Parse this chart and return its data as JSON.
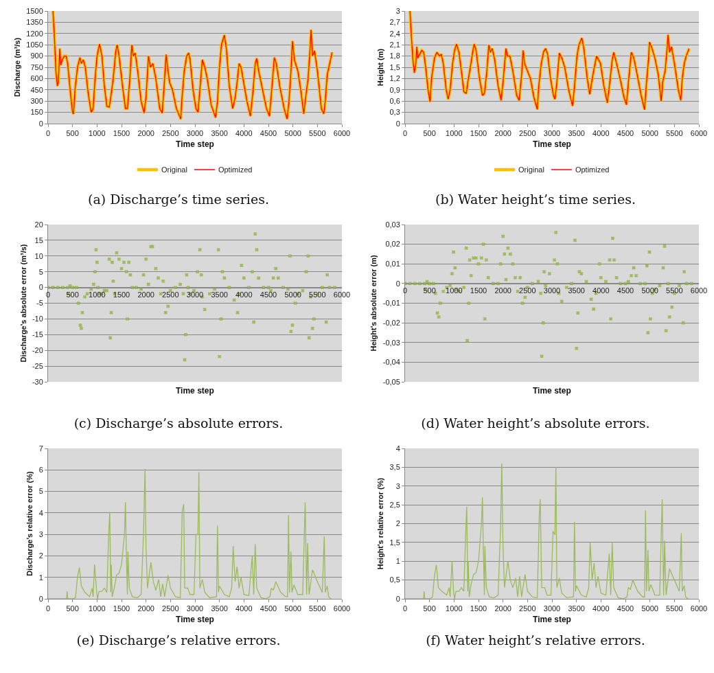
{
  "chart_data": [
    {
      "type": "line",
      "ylabel": "Discharge (m³/s)",
      "xlabel": "Time step",
      "annotations": [
        "(a) Discharge’s time series."
      ],
      "xlim": [
        0,
        6000
      ],
      "xticks": [
        0,
        500,
        1000,
        1500,
        2000,
        2500,
        3000,
        3500,
        4000,
        4500,
        5000,
        5500,
        6000
      ],
      "ylim": [
        0,
        1500
      ],
      "yticks": [
        0,
        150,
        300,
        450,
        600,
        750,
        900,
        1050,
        1200,
        1350,
        1500
      ],
      "grid": "y",
      "legend": "bottom",
      "x": [
        100,
        130,
        160,
        190,
        210,
        240,
        260,
        290,
        330,
        370,
        400,
        450,
        500,
        520,
        550,
        600,
        650,
        680,
        720,
        760,
        820,
        880,
        920,
        960,
        1000,
        1050,
        1100,
        1150,
        1200,
        1250,
        1290,
        1330,
        1380,
        1410,
        1450,
        1520,
        1580,
        1620,
        1670,
        1710,
        1740,
        1780,
        1830,
        1900,
        1960,
        2000,
        2050,
        2090,
        2140,
        2200,
        2280,
        2330,
        2370,
        2410,
        2440,
        2480,
        2540,
        2620,
        2710,
        2730,
        2780,
        2830,
        2870,
        2900,
        2960,
        3020,
        3060,
        3100,
        3150,
        3200,
        3250,
        3330,
        3420,
        3460,
        3500,
        3540,
        3600,
        3640,
        3700,
        3770,
        3820,
        3860,
        3900,
        3940,
        3980,
        4060,
        4130,
        4180,
        4230,
        4260,
        4300,
        4380,
        4460,
        4520,
        4560,
        4620,
        4660,
        4730,
        4820,
        4880,
        4920,
        4960,
        4990,
        5030,
        5100,
        5170,
        5220,
        5260,
        5310,
        5350,
        5370,
        5400,
        5440,
        5500,
        5580,
        5630,
        5660,
        5700,
        5750,
        5800
      ],
      "series": [
        {
          "name": "Original",
          "color": "#ffc000",
          "values": [
            1500,
            1150,
            700,
            500,
            560,
            1000,
            780,
            850,
            900,
            900,
            800,
            450,
            150,
            130,
            450,
            750,
            880,
            800,
            850,
            750,
            400,
            150,
            200,
            600,
            900,
            1060,
            900,
            500,
            230,
            220,
            400,
            600,
            950,
            1050,
            900,
            500,
            200,
            200,
            600,
            1050,
            900,
            940,
            700,
            300,
            140,
            350,
            900,
            750,
            800,
            600,
            200,
            140,
            500,
            920,
            750,
            550,
            450,
            200,
            60,
            300,
            700,
            900,
            940,
            850,
            450,
            200,
            150,
            450,
            850,
            750,
            600,
            250,
            80,
            300,
            750,
            1050,
            1180,
            1000,
            500,
            200,
            350,
            550,
            800,
            750,
            600,
            300,
            100,
            400,
            800,
            870,
            700,
            450,
            200,
            100,
            400,
            880,
            800,
            500,
            200,
            60,
            300,
            700,
            1100,
            850,
            700,
            400,
            130,
            350,
            600,
            1000,
            1250,
            900,
            970,
            700,
            200,
            130,
            300,
            650,
            800,
            950
          ]
        },
        {
          "name": "Optimized",
          "color": "#ff0000",
          "values": [
            1500,
            1150,
            700,
            500,
            560,
            1000,
            780,
            850,
            900,
            900,
            800,
            450,
            150,
            130,
            450,
            750,
            880,
            800,
            850,
            750,
            400,
            150,
            200,
            600,
            900,
            1060,
            900,
            500,
            230,
            220,
            400,
            600,
            950,
            1050,
            900,
            500,
            200,
            200,
            600,
            1050,
            900,
            940,
            700,
            300,
            140,
            350,
            900,
            750,
            800,
            600,
            200,
            140,
            500,
            920,
            750,
            550,
            450,
            200,
            60,
            300,
            700,
            900,
            940,
            850,
            450,
            200,
            150,
            450,
            850,
            750,
            600,
            250,
            80,
            300,
            750,
            1050,
            1180,
            1000,
            500,
            200,
            350,
            550,
            800,
            750,
            600,
            300,
            100,
            400,
            800,
            870,
            700,
            450,
            200,
            100,
            400,
            880,
            800,
            500,
            200,
            60,
            300,
            700,
            1100,
            850,
            700,
            400,
            130,
            350,
            600,
            1000,
            1250,
            900,
            970,
            700,
            200,
            130,
            300,
            650,
            800,
            950
          ]
        }
      ]
    },
    {
      "type": "line",
      "ylabel": "Height (m)",
      "xlabel": "Time step",
      "annotations": [
        "(b) Water height’s time series."
      ],
      "xlim": [
        0,
        6000
      ],
      "xticks": [
        0,
        500,
        1000,
        1500,
        2000,
        2500,
        3000,
        3500,
        4000,
        4500,
        5000,
        5500,
        6000
      ],
      "ylim": [
        0,
        3
      ],
      "yticks": [
        0,
        {
          "value": 0.3,
          "label": "0,3"
        },
        {
          "value": 0.6,
          "label": "0,6"
        },
        {
          "value": 0.9,
          "label": "0,9"
        },
        {
          "value": 1.2,
          "label": "1,2"
        },
        {
          "value": 1.5,
          "label": "1,5"
        },
        {
          "value": 1.8,
          "label": "1,8"
        },
        {
          "value": 2.1,
          "label": "2,1"
        },
        {
          "value": 2.4,
          "label": "2,4"
        },
        {
          "value": 2.7,
          "label": "2,7"
        },
        3
      ],
      "grid": "y",
      "legend": "bottom",
      "x": [
        100,
        130,
        160,
        190,
        220,
        240,
        260,
        300,
        340,
        380,
        420,
        470,
        510,
        540,
        600,
        650,
        700,
        740,
        780,
        840,
        880,
        920,
        970,
        1010,
        1050,
        1100,
        1160,
        1200,
        1250,
        1280,
        1320,
        1380,
        1410,
        1450,
        1520,
        1580,
        1620,
        1670,
        1710,
        1740,
        1780,
        1830,
        1900,
        1960,
        2000,
        2060,
        2090,
        2140,
        2200,
        2280,
        2330,
        2380,
        2410,
        2440,
        2500,
        2560,
        2630,
        2700,
        2730,
        2780,
        2830,
        2870,
        2910,
        2970,
        3030,
        3060,
        3100,
        3150,
        3200,
        3260,
        3340,
        3420,
        3460,
        3510,
        3550,
        3610,
        3650,
        3720,
        3770,
        3810,
        3850,
        3910,
        3950,
        3990,
        4060,
        4130,
        4180,
        4230,
        4260,
        4310,
        4390,
        4470,
        4520,
        4560,
        4620,
        4670,
        4740,
        4820,
        4890,
        4930,
        4970,
        4990,
        5030,
        5100,
        5170,
        5230,
        5260,
        5310,
        5350,
        5370,
        5400,
        5440,
        5500,
        5580,
        5630,
        5660,
        5700,
        5740,
        5800
      ],
      "series": [
        {
          "name": "Original",
          "color": "#ffc000",
          "values": [
            3.0,
            2.3,
            1.7,
            1.35,
            1.6,
            2.05,
            1.75,
            1.85,
            1.95,
            1.9,
            1.5,
            0.9,
            0.58,
            1.2,
            1.75,
            1.9,
            1.8,
            1.85,
            1.6,
            0.9,
            0.65,
            0.9,
            1.6,
            1.95,
            2.12,
            1.9,
            1.3,
            0.85,
            0.8,
            1.1,
            1.4,
            1.9,
            2.12,
            1.95,
            1.2,
            0.75,
            0.8,
            1.4,
            2.1,
            1.9,
            2.0,
            1.7,
            1.0,
            0.62,
            1.1,
            2.0,
            1.8,
            1.8,
            1.4,
            0.75,
            0.62,
            1.3,
            1.95,
            1.6,
            1.4,
            1.2,
            0.7,
            0.38,
            1.0,
            1.6,
            1.92,
            2.0,
            1.85,
            1.2,
            0.75,
            0.65,
            1.1,
            1.88,
            1.75,
            1.5,
            0.9,
            0.47,
            1.0,
            1.8,
            2.1,
            2.28,
            2.0,
            1.2,
            0.78,
            1.1,
            1.4,
            1.8,
            1.7,
            1.6,
            1.0,
            0.55,
            1.1,
            1.7,
            1.9,
            1.65,
            1.2,
            0.7,
            0.5,
            1.1,
            1.9,
            1.75,
            1.3,
            0.75,
            0.37,
            1.1,
            1.7,
            2.17,
            2.05,
            1.75,
            1.3,
            0.6,
            1.1,
            1.4,
            2.0,
            2.37,
            1.9,
            2.05,
            1.6,
            0.9,
            0.62,
            1.2,
            1.6,
            1.8,
            2.0
          ]
        },
        {
          "name": "Optimized",
          "color": "#ff0000",
          "values": [
            3.0,
            2.3,
            1.7,
            1.35,
            1.6,
            2.05,
            1.75,
            1.85,
            1.95,
            1.9,
            1.5,
            0.9,
            0.58,
            1.2,
            1.75,
            1.9,
            1.8,
            1.85,
            1.6,
            0.9,
            0.65,
            0.9,
            1.6,
            1.95,
            2.12,
            1.9,
            1.3,
            0.85,
            0.8,
            1.1,
            1.4,
            1.9,
            2.12,
            1.95,
            1.2,
            0.75,
            0.8,
            1.4,
            2.1,
            1.9,
            2.0,
            1.7,
            1.0,
            0.62,
            1.1,
            2.0,
            1.8,
            1.8,
            1.4,
            0.75,
            0.62,
            1.3,
            1.95,
            1.6,
            1.4,
            1.2,
            0.7,
            0.38,
            1.0,
            1.6,
            1.92,
            2.0,
            1.85,
            1.2,
            0.75,
            0.65,
            1.1,
            1.88,
            1.75,
            1.5,
            0.9,
            0.47,
            1.0,
            1.8,
            2.1,
            2.28,
            2.0,
            1.2,
            0.78,
            1.1,
            1.4,
            1.8,
            1.7,
            1.6,
            1.0,
            0.55,
            1.1,
            1.7,
            1.9,
            1.65,
            1.2,
            0.7,
            0.5,
            1.1,
            1.9,
            1.75,
            1.3,
            0.75,
            0.37,
            1.1,
            1.7,
            2.17,
            2.05,
            1.75,
            1.3,
            0.6,
            1.1,
            1.4,
            2.0,
            2.37,
            1.9,
            2.05,
            1.6,
            0.9,
            0.62,
            1.2,
            1.6,
            1.8,
            2.0
          ]
        }
      ]
    },
    {
      "type": "scatter",
      "ylabel": "Discharge's absolute error (m³/s)",
      "xlabel": "Time step",
      "annotations": [
        "(c) Discharge’s absolute errors."
      ],
      "xlim": [
        0,
        6000
      ],
      "xticks": [
        0,
        500,
        1000,
        1500,
        2000,
        2500,
        3000,
        3500,
        4000,
        4500,
        5000,
        5500,
        6000
      ],
      "ylim": [
        -30,
        20
      ],
      "yticks": [
        -30,
        -25,
        -20,
        -15,
        -10,
        -5,
        0,
        5,
        10,
        15,
        20
      ],
      "grid": "y",
      "marker": "cross",
      "x": [
        0,
        100,
        200,
        300,
        400,
        420,
        450,
        500,
        580,
        620,
        660,
        680,
        700,
        750,
        800,
        880,
        930,
        960,
        980,
        1000,
        1020,
        1050,
        1100,
        1150,
        1200,
        1250,
        1270,
        1290,
        1310,
        1330,
        1360,
        1400,
        1450,
        1500,
        1550,
        1600,
        1620,
        1650,
        1680,
        1720,
        1800,
        1900,
        1950,
        2000,
        2050,
        2100,
        2130,
        2200,
        2250,
        2300,
        2350,
        2400,
        2450,
        2500,
        2600,
        2700,
        2760,
        2790,
        2810,
        2830,
        2860,
        2900,
        2980,
        3050,
        3100,
        3130,
        3150,
        3200,
        3300,
        3400,
        3480,
        3500,
        3530,
        3560,
        3600,
        3700,
        3800,
        3870,
        3900,
        3950,
        4000,
        4100,
        4170,
        4200,
        4230,
        4260,
        4300,
        4400,
        4500,
        4550,
        4600,
        4650,
        4700,
        4800,
        4900,
        4940,
        4960,
        4990,
        5050,
        5100,
        5200,
        5270,
        5310,
        5330,
        5360,
        5400,
        5430,
        5500,
        5600,
        5680,
        5700,
        5750,
        5850
      ],
      "series": [
        {
          "color": "#9bbb59",
          "values": [
            0,
            0,
            0,
            0,
            0,
            -2,
            0.5,
            0,
            0,
            -5,
            -12,
            -13,
            -8,
            -3,
            -2,
            -0.5,
            1,
            5,
            12,
            8,
            0,
            -2,
            -2,
            -1,
            -1,
            9,
            -16,
            -8,
            8,
            2,
            -2,
            11,
            9,
            6,
            8,
            5,
            -10,
            8,
            4,
            0,
            0,
            -0.5,
            4,
            9,
            1,
            13,
            13,
            6,
            3,
            -2,
            2,
            -8,
            -6,
            -1,
            0,
            1,
            -2,
            -23,
            -15,
            4,
            0,
            -2,
            -1,
            5,
            12,
            4,
            -3,
            -7,
            -2,
            -0.5,
            12,
            -22,
            -10,
            5,
            3,
            0,
            -4,
            -8,
            -2,
            7,
            3,
            0,
            5,
            -11,
            17,
            12,
            3,
            0,
            0,
            -1,
            3,
            6,
            3,
            0,
            -0.5,
            10,
            -14,
            -12,
            -5,
            -2,
            -1,
            5,
            10,
            -16,
            -3,
            -13,
            -10,
            -2,
            0,
            -11,
            4,
            0,
            0
          ]
        }
      ]
    },
    {
      "type": "scatter",
      "ylabel": "Height's absolute error (m)",
      "xlabel": "Time step",
      "annotations": [
        "(d) Water height’s absolute errors."
      ],
      "xlim": [
        0,
        6000
      ],
      "xticks": [
        0,
        500,
        1000,
        1500,
        2000,
        2500,
        3000,
        3500,
        4000,
        4500,
        5000,
        5500,
        6000
      ],
      "ylim": [
        -0.05,
        0.03
      ],
      "yticks": [
        {
          "value": -0.05,
          "label": "-0,05"
        },
        {
          "value": -0.04,
          "label": "-0,04"
        },
        {
          "value": -0.03,
          "label": "-0,03"
        },
        {
          "value": -0.02,
          "label": "-0,02"
        },
        {
          "value": -0.01,
          "label": "-0,01"
        },
        0,
        {
          "value": 0.01,
          "label": "0,01"
        },
        {
          "value": 0.02,
          "label": "0,02"
        },
        {
          "value": 0.03,
          "label": "0,03"
        }
      ],
      "grid": "y",
      "marker": "cross",
      "x": [
        0,
        100,
        200,
        300,
        400,
        420,
        450,
        500,
        580,
        620,
        660,
        690,
        720,
        780,
        850,
        920,
        960,
        990,
        1020,
        1050,
        1100,
        1200,
        1250,
        1270,
        1300,
        1320,
        1350,
        1400,
        1450,
        1500,
        1560,
        1600,
        1630,
        1660,
        1700,
        1800,
        1900,
        1950,
        2000,
        2030,
        2060,
        2100,
        2150,
        2200,
        2250,
        2300,
        2350,
        2400,
        2450,
        2500,
        2600,
        2720,
        2770,
        2790,
        2820,
        2840,
        2870,
        2950,
        3050,
        3080,
        3110,
        3140,
        3200,
        3300,
        3400,
        3470,
        3500,
        3530,
        3560,
        3600,
        3700,
        3800,
        3850,
        3900,
        3970,
        4000,
        4100,
        4180,
        4200,
        4240,
        4270,
        4320,
        4400,
        4500,
        4560,
        4620,
        4670,
        4720,
        4800,
        4900,
        4940,
        4960,
        4990,
        5010,
        5050,
        5100,
        5200,
        5270,
        5300,
        5330,
        5370,
        5400,
        5450,
        5500,
        5600,
        5680,
        5700,
        5750,
        5850
      ],
      "series": [
        {
          "color": "#9bbb59",
          "values": [
            0,
            0,
            0,
            0,
            0,
            -0.003,
            0.001,
            0,
            0,
            -0.005,
            -0.015,
            -0.017,
            -0.01,
            -0.004,
            -0.002,
            -0.001,
            0.005,
            0.016,
            0.008,
            -0.003,
            -0.004,
            -0.002,
            0.018,
            -0.029,
            -0.01,
            0.012,
            0.004,
            0.013,
            0.013,
            0.01,
            0.013,
            0.02,
            -0.018,
            0.012,
            0.003,
            0,
            0,
            0.01,
            0.024,
            0.015,
            0.002,
            0.018,
            0.015,
            0.01,
            0.003,
            -0.004,
            0.003,
            -0.01,
            -0.007,
            -0.002,
            0,
            0.001,
            -0.005,
            -0.037,
            -0.02,
            0.006,
            -0.001,
            0.005,
            0.012,
            0.026,
            0.01,
            -0.005,
            -0.009,
            -0.002,
            0,
            0.022,
            -0.033,
            -0.015,
            0.006,
            0.005,
            0.001,
            -0.008,
            -0.013,
            -0.005,
            0.01,
            0.003,
            0.001,
            0.012,
            -0.018,
            0.023,
            0.012,
            0.003,
            0,
            0,
            0.001,
            0.004,
            0.008,
            0.004,
            0,
            0,
            0.009,
            -0.025,
            0.016,
            -0.018,
            -0.005,
            -0.003,
            -0.001,
            0.008,
            0.019,
            -0.024,
            0,
            -0.017,
            -0.012,
            -0.005,
            -0.001,
            -0.02,
            0.006,
            0,
            0
          ]
        }
      ]
    },
    {
      "type": "line",
      "ylabel": "Discharge's relative error (%)",
      "xlabel": "Time step",
      "annotations": [
        "(e) Discharge’s relative errors."
      ],
      "xlim": [
        0,
        6000
      ],
      "xticks": [
        0,
        500,
        1000,
        1500,
        2000,
        2500,
        3000,
        3500,
        4000,
        4500,
        5000,
        5500,
        6000
      ],
      "ylim": [
        0,
        7
      ],
      "yticks": [
        0,
        1,
        2,
        3,
        4,
        5,
        6,
        7
      ],
      "grid": "y",
      "x": [
        0,
        380,
        390,
        400,
        500,
        560,
        600,
        640,
        680,
        750,
        850,
        900,
        920,
        950,
        990,
        1010,
        1040,
        1100,
        1150,
        1200,
        1240,
        1260,
        1280,
        1290,
        1310,
        1350,
        1400,
        1450,
        1500,
        1560,
        1580,
        1600,
        1620,
        1630,
        1660,
        1720,
        1820,
        1900,
        1950,
        1980,
        2000,
        2030,
        2100,
        2150,
        2200,
        2260,
        2300,
        2340,
        2380,
        2450,
        2500,
        2600,
        2700,
        2740,
        2770,
        2790,
        2850,
        2900,
        2980,
        3020,
        3060,
        3080,
        3100,
        3150,
        3200,
        3300,
        3440,
        3460,
        3480,
        3500,
        3600,
        3700,
        3750,
        3780,
        3820,
        3860,
        3900,
        3940,
        4000,
        4100,
        4170,
        4200,
        4230,
        4260,
        4350,
        4450,
        4530,
        4560,
        4600,
        4650,
        4750,
        4850,
        4890,
        4910,
        4930,
        4960,
        4980,
        5020,
        5100,
        5200,
        5250,
        5280,
        5300,
        5330,
        5400,
        5500,
        5600,
        5640,
        5660,
        5700,
        5730,
        5780
      ],
      "series": [
        {
          "color": "#9bbb59",
          "values": [
            0,
            0,
            0.35,
            0,
            0,
            0.05,
            1,
            1.45,
            0.6,
            0.3,
            0.1,
            0.5,
            0.1,
            1.6,
            0.4,
            0,
            0.35,
            0.35,
            0.5,
            0.3,
            3.1,
            4.05,
            0.3,
            1.6,
            0.1,
            0.5,
            1.1,
            1.2,
            1.6,
            3,
            4.5,
            2,
            0.2,
            2.2,
            0.5,
            0.1,
            0.05,
            0.2,
            3.1,
            6.05,
            2.4,
            0.5,
            1.7,
            0.8,
            0.4,
            0.9,
            0.1,
            0.7,
            0.1,
            1.1,
            0.5,
            0.1,
            0.05,
            4.1,
            4.4,
            0.5,
            0.5,
            0.2,
            0.2,
            3,
            3,
            5.9,
            0.5,
            0.9,
            0.3,
            0.05,
            0.1,
            3.4,
            0.3,
            0.6,
            0.2,
            0.1,
            0.5,
            2.45,
            0.8,
            1.5,
            0.5,
            1,
            0.2,
            0.15,
            2,
            0.2,
            2.55,
            0.5,
            0.05,
            0,
            0.1,
            0.5,
            0.4,
            0.8,
            0.3,
            0.1,
            0.1,
            3.9,
            0.3,
            2.2,
            0.3,
            0.65,
            0.2,
            0.2,
            4.5,
            0.2,
            2.6,
            0.2,
            1.35,
            0.8,
            0.3,
            2.9,
            0.3,
            0.6,
            0.1,
            0
          ]
        }
      ]
    },
    {
      "type": "line",
      "ylabel": "Height's relative error (%)",
      "xlabel": "Time step",
      "annotations": [
        "(f) Water height’s relative errors."
      ],
      "xlim": [
        0,
        6000
      ],
      "xticks": [
        0,
        500,
        1000,
        1500,
        2000,
        2500,
        3000,
        3500,
        4000,
        4500,
        5000,
        5500,
        6000
      ],
      "ylim": [
        0,
        4
      ],
      "yticks": [
        0,
        {
          "value": 0.5,
          "label": "0,5"
        },
        1,
        {
          "value": 1.5,
          "label": "1,5"
        },
        2,
        {
          "value": 2.5,
          "label": "2,5"
        },
        3,
        {
          "value": 3.5,
          "label": "3,5"
        },
        4
      ],
      "grid": "y",
      "x": [
        0,
        380,
        390,
        400,
        500,
        560,
        600,
        640,
        680,
        750,
        850,
        900,
        920,
        960,
        990,
        1010,
        1040,
        1100,
        1150,
        1200,
        1240,
        1260,
        1280,
        1290,
        1310,
        1350,
        1400,
        1450,
        1500,
        1560,
        1580,
        1600,
        1620,
        1630,
        1660,
        1720,
        1820,
        1900,
        1950,
        1975,
        2000,
        2030,
        2100,
        2150,
        2200,
        2260,
        2300,
        2340,
        2380,
        2450,
        2500,
        2600,
        2700,
        2740,
        2760,
        2790,
        2850,
        2900,
        2980,
        3020,
        3060,
        3080,
        3100,
        3150,
        3200,
        3300,
        3440,
        3460,
        3480,
        3500,
        3600,
        3700,
        3750,
        3780,
        3820,
        3860,
        3900,
        3940,
        4000,
        4100,
        4170,
        4200,
        4230,
        4260,
        4350,
        4450,
        4530,
        4560,
        4600,
        4650,
        4750,
        4850,
        4890,
        4910,
        4930,
        4960,
        4980,
        5020,
        5100,
        5200,
        5250,
        5280,
        5300,
        5330,
        5400,
        5500,
        5600,
        5640,
        5660,
        5700,
        5730,
        5780
      ],
      "series": [
        {
          "color": "#9bbb59",
          "values": [
            0,
            0,
            0.2,
            0,
            0,
            0.05,
            0.6,
            0.9,
            0.3,
            0.2,
            0.1,
            0.3,
            0.05,
            1,
            0.2,
            0,
            0.2,
            0.2,
            0.3,
            0.2,
            1.8,
            2.45,
            0.2,
            1,
            0.05,
            0.4,
            0.65,
            0.7,
            1,
            2,
            2.7,
            1.2,
            0.1,
            1.4,
            0.3,
            0.05,
            0.03,
            0.1,
            1.9,
            3.6,
            1.4,
            0.3,
            1,
            0.5,
            0.3,
            0.55,
            0.05,
            0.6,
            0.05,
            0.65,
            0.2,
            0.05,
            0.03,
            2.2,
            2.65,
            0.3,
            0.3,
            0.1,
            0.1,
            1.8,
            1.7,
            3.5,
            0.3,
            0.55,
            0.15,
            0.03,
            0.05,
            2.05,
            0.2,
            0.35,
            0.1,
            0.05,
            0.3,
            1.5,
            0.5,
            0.95,
            0.3,
            0.6,
            0.15,
            0.1,
            1.2,
            0.1,
            1.5,
            0.3,
            0.03,
            0,
            0.05,
            0.3,
            0.25,
            0.5,
            0.2,
            0.05,
            0.05,
            2.35,
            0.2,
            1.3,
            0.2,
            0.38,
            0.1,
            0.1,
            2.65,
            0.1,
            1.55,
            0.1,
            0.8,
            0.5,
            0.2,
            1.75,
            0.2,
            0.35,
            0.05,
            0
          ]
        }
      ]
    }
  ]
}
